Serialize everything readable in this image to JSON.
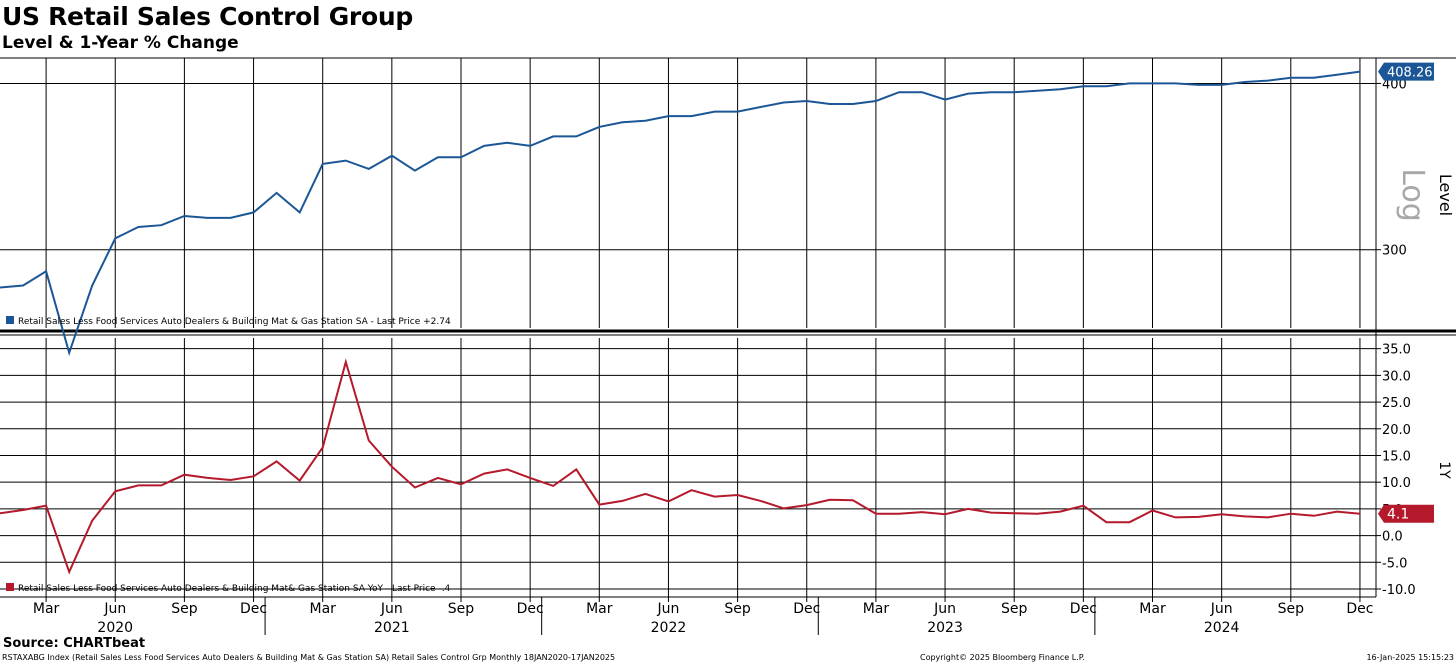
{
  "title": "US Retail Sales Control Group",
  "subtitle": "Level & 1-Year % Change",
  "source": "Source: CHARTbeat",
  "footer": {
    "left": "RSTAXABG Index (Retail Sales Less Food Services Auto Dealers & Building Mat & Gas Station SA) Retail Sales Control Grp  Monthly 18JAN2020-17JAN2025",
    "middle": "Copyright© 2025 Bloomberg Finance L.P.",
    "right": "16-Jan-2025 15:15:23"
  },
  "colors": {
    "level": "#1b5796",
    "yoy": "#b5192c",
    "grid": "#000000"
  },
  "chart_data": [
    {
      "type": "line",
      "panel": "top",
      "title": "",
      "ylabel": "Level",
      "scale_label": "Log",
      "scale": "log",
      "ylim": [
        262,
        418
      ],
      "yticks": [
        300,
        400
      ],
      "last_value_label": "408.26",
      "legend": "Retail Sales Less Food Services Auto Dealers & Building Mat & Gas Station SA - Last Price +2.74",
      "legend_position": "bottom-left",
      "x_start": "2020-01",
      "x_end": "2024-12",
      "series": [
        {
          "name": "Retail Sales Less Food Services Auto Dealers & Building Mat & Gas Station SA",
          "values": [
            281,
            282,
            289,
            251,
            282,
            306,
            312,
            313,
            318,
            317,
            317,
            320,
            331,
            320,
            348,
            350,
            345,
            353,
            344,
            352,
            352,
            359,
            361,
            359,
            365,
            365,
            371,
            374,
            375,
            378,
            378,
            381,
            381,
            384,
            387,
            388,
            386,
            386,
            388,
            394,
            394,
            389,
            393,
            394,
            394,
            395,
            396,
            398,
            398,
            400,
            400,
            400,
            399,
            399,
            401,
            402,
            404,
            404,
            406,
            408.26
          ]
        }
      ]
    },
    {
      "type": "line",
      "panel": "bottom",
      "title": "",
      "ylabel": "1Y",
      "ylim": [
        -11.5,
        37
      ],
      "yticks": [
        -10.0,
        -5.0,
        0.0,
        5.0,
        10.0,
        15.0,
        20.0,
        25.0,
        30.0,
        35.0
      ],
      "ytick_labels": [
        "-10.0",
        "-5.0",
        "0.0",
        "5.0",
        "10.0",
        "15.0",
        "20.0",
        "25.0",
        "30.0",
        "35.0"
      ],
      "last_value_label": "4.1",
      "legend": "Retail Sales Less Food Services Auto Dealers & Building Mat& Gas Station SA YoY - Last Price -.4",
      "legend_position": "bottom-left",
      "x_start": "2020-01",
      "x_end": "2024-12",
      "series": [
        {
          "name": "Retail Sales Less Food Services Auto Dealers & Building Mat& Gas Station SA YoY",
          "values": [
            4.2,
            4.8,
            5.6,
            -6.8,
            2.8,
            8.3,
            9.4,
            9.4,
            11.4,
            10.8,
            10.4,
            11.1,
            13.9,
            10.3,
            16.5,
            32.5,
            17.8,
            12.9,
            9.0,
            10.8,
            9.6,
            11.6,
            12.4,
            10.8,
            9.3,
            12.4,
            5.8,
            6.5,
            7.8,
            6.4,
            8.5,
            7.3,
            7.6,
            6.5,
            5.1,
            5.7,
            6.7,
            6.6,
            4.1,
            4.1,
            4.4,
            4.0,
            5.0,
            4.3,
            4.2,
            4.1,
            4.5,
            5.6,
            2.5,
            2.5,
            4.7,
            3.4,
            3.5,
            4.0,
            3.6,
            3.4,
            4.1,
            3.7,
            4.5,
            4.1
          ]
        }
      ]
    }
  ],
  "x_axis": {
    "month_labels": [
      {
        "label": "Mar",
        "month": 2
      },
      {
        "label": "Jun",
        "month": 5
      },
      {
        "label": "Sep",
        "month": 8
      },
      {
        "label": "Dec",
        "month": 11
      },
      {
        "label": "Mar",
        "month": 14
      },
      {
        "label": "Jun",
        "month": 17
      },
      {
        "label": "Sep",
        "month": 20
      },
      {
        "label": "Dec",
        "month": 23
      },
      {
        "label": "Mar",
        "month": 26
      },
      {
        "label": "Jun",
        "month": 29
      },
      {
        "label": "Sep",
        "month": 32
      },
      {
        "label": "Dec",
        "month": 35
      },
      {
        "label": "Mar",
        "month": 38
      },
      {
        "label": "Jun",
        "month": 41
      },
      {
        "label": "Sep",
        "month": 44
      },
      {
        "label": "Dec",
        "month": 47
      },
      {
        "label": "Mar",
        "month": 50
      },
      {
        "label": "Jun",
        "month": 53
      },
      {
        "label": "Sep",
        "month": 56
      },
      {
        "label": "Dec",
        "month": 59
      }
    ],
    "year_labels": [
      {
        "label": "2020",
        "month": 5
      },
      {
        "label": "2021",
        "month": 17
      },
      {
        "label": "2022",
        "month": 29
      },
      {
        "label": "2023",
        "month": 41
      },
      {
        "label": "2024",
        "month": 53
      }
    ],
    "year_dividers": [
      12,
      24,
      36,
      48
    ]
  }
}
